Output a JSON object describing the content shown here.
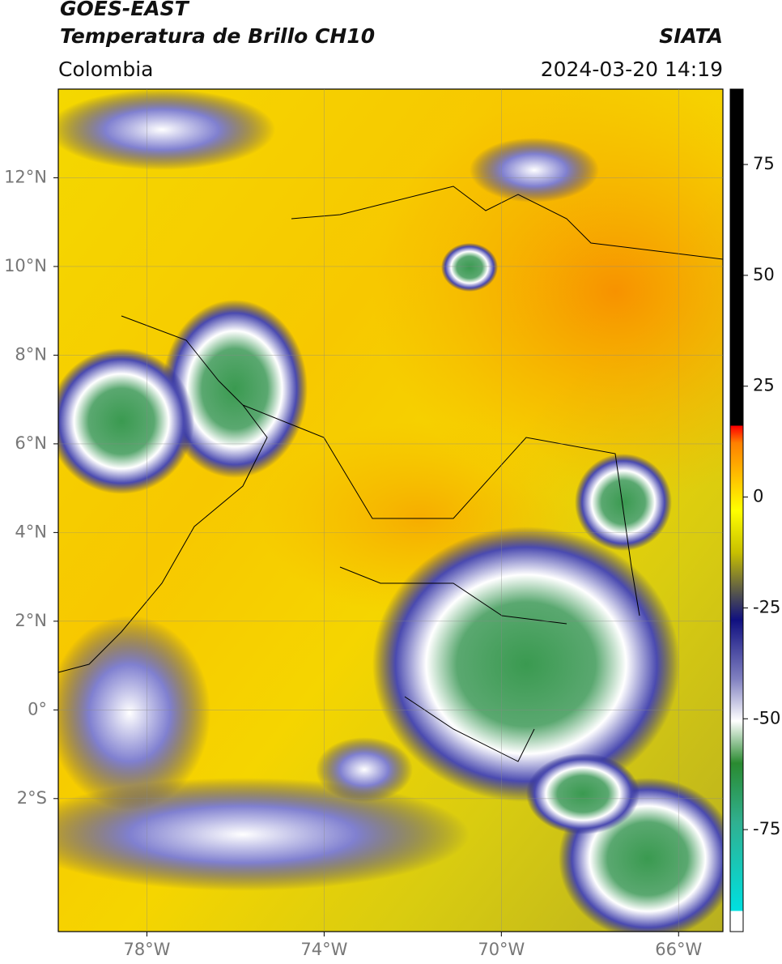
{
  "header": {
    "title": "GOES-EAST",
    "subtitle": "Temperatura de Brillo CH10",
    "region": "Colombia",
    "source": "SIATA",
    "datetime": "2024-03-20 14:19"
  },
  "map": {
    "xlim": [
      -80,
      -65
    ],
    "ylim": [
      -5,
      14
    ],
    "xticks": [
      {
        "value": -78,
        "label": "78°W"
      },
      {
        "value": -74,
        "label": "74°W"
      },
      {
        "value": -70,
        "label": "70°W"
      },
      {
        "value": -66,
        "label": "66°W"
      }
    ],
    "yticks": [
      {
        "value": 12,
        "label": "12°N"
      },
      {
        "value": 10,
        "label": "10°N"
      },
      {
        "value": 8,
        "label": "8°N"
      },
      {
        "value": 6,
        "label": "6°N"
      },
      {
        "value": 4,
        "label": "4°N"
      },
      {
        "value": 2,
        "label": "2°N"
      },
      {
        "value": 0,
        "label": "0°"
      },
      {
        "value": -2,
        "label": "2°S"
      }
    ],
    "grid": true
  },
  "colorbar": {
    "lim": [
      -98,
      92
    ],
    "ticks": [
      75,
      50,
      25,
      0,
      -25,
      -50,
      -75
    ]
  }
}
